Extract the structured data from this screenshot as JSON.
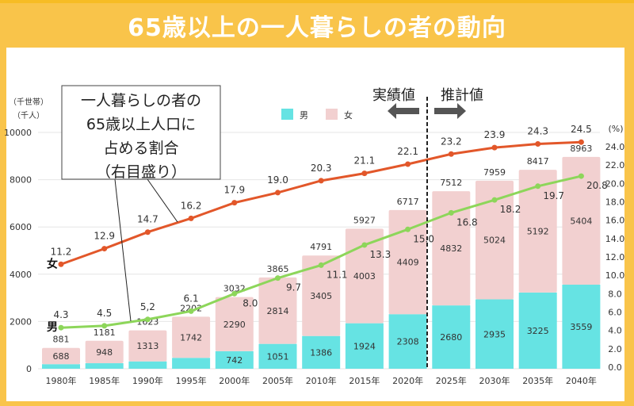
{
  "title": "65歳以上の一人暮らしの者の動向",
  "colors": {
    "banner": "#F9C44A",
    "male_bar": "#66E3E3",
    "female_bar": "#F2D0D0",
    "female_line": "#E2572A",
    "male_line": "#8DD65A"
  },
  "chart_data": {
    "type": "bar+line",
    "categories": [
      "1980年",
      "1985年",
      "1990年",
      "1995年",
      "2000年",
      "2005年",
      "2010年",
      "2015年",
      "2020年",
      "2025年",
      "2030年",
      "2035年",
      "2040年"
    ],
    "left_axis": {
      "label_lines": [
        "（千世帯）",
        "（千人）"
      ],
      "ticks": [
        0,
        2000,
        4000,
        6000,
        8000,
        10000
      ],
      "ylim": [
        0,
        10000
      ]
    },
    "right_axis": {
      "label": "(%)",
      "ticks": [
        "0.0",
        "2.0",
        "4.0",
        "6.0",
        "8.0",
        "10.0",
        "12.0",
        "14.0",
        "16.0",
        "18.0",
        "20.0",
        "22.0",
        "24.0"
      ],
      "ylim": [
        0,
        24
      ]
    },
    "bar_series": [
      {
        "name": "男",
        "values": [
          193,
          233,
          310,
          460,
          742,
          1051,
          1386,
          1924,
          2308,
          2680,
          2935,
          3225,
          3559
        ],
        "labels": [
          "",
          "",
          "",
          "",
          "742",
          "1051",
          "1386",
          "1924",
          "2308",
          "2680",
          "2935",
          "3225",
          "3559"
        ]
      },
      {
        "name": "女",
        "values": [
          688,
          948,
          1313,
          1742,
          2290,
          2814,
          3405,
          4003,
          4409,
          4832,
          5024,
          5192,
          5404
        ],
        "labels": [
          "688",
          "948",
          "1313",
          "1742",
          "2290",
          "2814",
          "3405",
          "4003",
          "4409",
          "4832",
          "5024",
          "5192",
          "5404"
        ]
      }
    ],
    "totals": [
      "881",
      "1181",
      "1623",
      "2202",
      "3032",
      "3865",
      "4791",
      "5927",
      "6717",
      "7512",
      "7959",
      "8417",
      "8963"
    ],
    "line_series": [
      {
        "name": "女",
        "values": [
          11.2,
          12.9,
          14.7,
          16.2,
          17.9,
          19.0,
          20.3,
          21.1,
          22.1,
          23.2,
          23.9,
          24.3,
          24.5
        ],
        "labels": [
          "11.2",
          "12.9",
          "14.7",
          "16.2",
          "17.9",
          "19.0",
          "20.3",
          "21.1",
          "22.1",
          "23.2",
          "23.9",
          "24.3",
          "24.5"
        ]
      },
      {
        "name": "男",
        "values": [
          4.3,
          4.5,
          5.2,
          6.1,
          8.0,
          9.7,
          11.1,
          13.3,
          15.0,
          16.8,
          18.2,
          19.7,
          20.8
        ],
        "labels": [
          "4.3",
          "4.5",
          "5,2",
          "6.1",
          "8.0",
          "9.7",
          "11.1",
          "13.3",
          "15.0",
          "16.8",
          "18.2",
          "19.7",
          "20.8"
        ]
      }
    ],
    "legend": [
      {
        "label": "男"
      },
      {
        "label": "女"
      }
    ],
    "annotation_box": [
      "一人暮らしの者の",
      "65歳以上人口に",
      "占める割合",
      "（右目盛り）"
    ],
    "divider": {
      "left_label": "実績値",
      "right_label": "推計値"
    },
    "grid": true
  }
}
